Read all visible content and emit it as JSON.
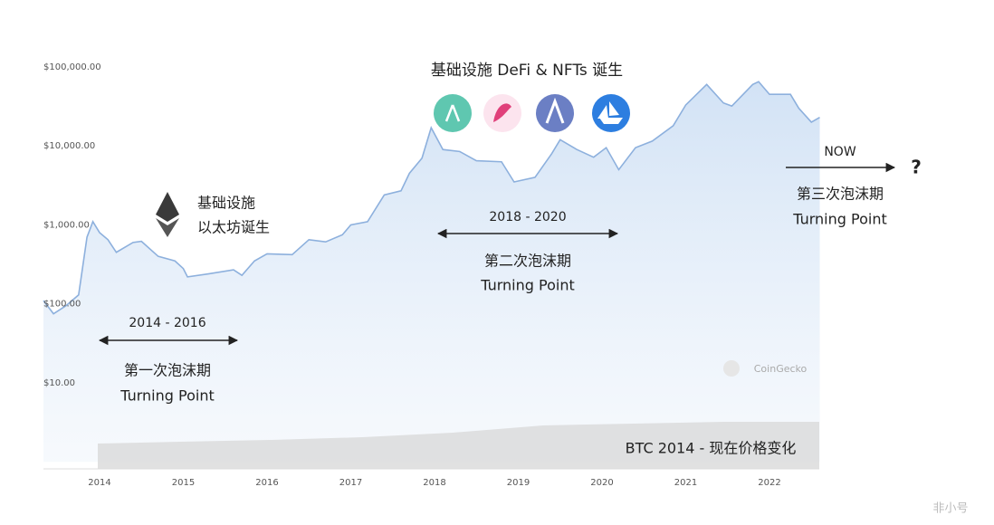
{
  "chart_data": {
    "type": "line",
    "log_y": true,
    "grid": false,
    "xlim": [
      2013.33,
      2022.6
    ],
    "xticks": [
      2014,
      2015,
      2016,
      2017,
      2018,
      2019,
      2020,
      2021,
      2022
    ],
    "ylim": [
      1,
      150000
    ],
    "yticks": [
      {
        "value": 10,
        "label": "$10.00"
      },
      {
        "value": 100,
        "label": "$100.00"
      },
      {
        "value": 1000,
        "label": "$1,000.00"
      },
      {
        "value": 10000,
        "label": "$10,000.00"
      },
      {
        "value": 100000,
        "label": "$100,000.00"
      }
    ],
    "x": [
      2013.33,
      2013.45,
      2013.6,
      2013.75,
      2013.85,
      2013.92,
      2014.0,
      2014.1,
      2014.2,
      2014.4,
      2014.5,
      2014.7,
      2014.9,
      2015.0,
      2015.05,
      2015.3,
      2015.6,
      2015.7,
      2015.85,
      2016.0,
      2016.3,
      2016.5,
      2016.7,
      2016.9,
      2017.0,
      2017.2,
      2017.4,
      2017.6,
      2017.7,
      2017.85,
      2017.96,
      2018.1,
      2018.3,
      2018.5,
      2018.8,
      2018.95,
      2019.2,
      2019.4,
      2019.5,
      2019.7,
      2019.9,
      2020.05,
      2020.2,
      2020.4,
      2020.6,
      2020.85,
      2021.0,
      2021.25,
      2021.45,
      2021.55,
      2021.8,
      2021.87,
      2022.0,
      2022.25,
      2022.35,
      2022.5,
      2022.6
    ],
    "series": [
      {
        "color": "#8db0dd",
        "values": [
          110,
          75,
          95,
          130,
          700,
          1100,
          800,
          650,
          450,
          600,
          620,
          400,
          350,
          280,
          220,
          240,
          270,
          230,
          350,
          430,
          420,
          650,
          610,
          750,
          1000,
          1100,
          2400,
          2700,
          4500,
          7000,
          17000,
          9000,
          8500,
          6500,
          6300,
          3500,
          4000,
          8000,
          12000,
          9000,
          7200,
          9500,
          5000,
          9500,
          11500,
          18000,
          33000,
          60000,
          35000,
          32000,
          60000,
          65000,
          45000,
          45000,
          30000,
          20000,
          23000
        ]
      }
    ],
    "annotations": [
      "基础设施 DeFi & NFTs 诞生",
      "基础设施",
      "以太坊诞生",
      "2014 - 2016",
      "第一次泡沫期",
      "Turning Point",
      "2018 - 2020",
      "第二次泡沫期",
      "Turning Point",
      "NOW",
      "?",
      "第三次泡沫期",
      "Turning Point",
      "CoinGecko",
      "BTC 2014 - 现在价格变化",
      "非小号"
    ]
  }
}
